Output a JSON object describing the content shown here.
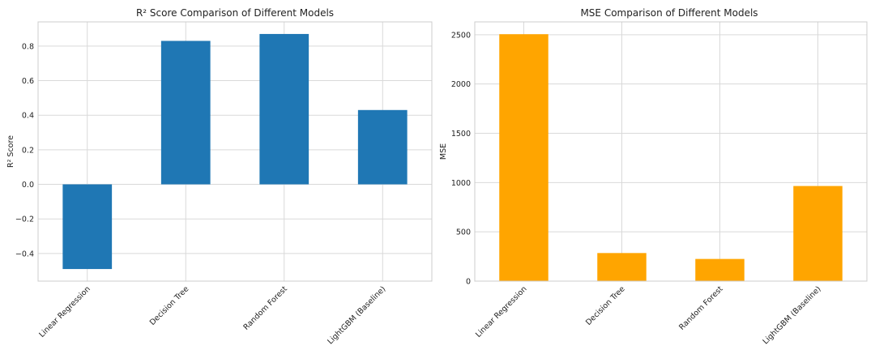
{
  "chart_data": [
    {
      "type": "bar",
      "title": "R² Score Comparison of Different Models",
      "xlabel": "",
      "ylabel": "R² Score",
      "categories": [
        "Linear Regression",
        "Decision Tree",
        "Random Forest",
        "LightGBM (Baseline)"
      ],
      "values": [
        -0.49,
        0.83,
        0.87,
        0.43
      ],
      "ylim": [
        -0.56,
        0.94
      ],
      "yticks": [
        -0.4,
        -0.2,
        0.0,
        0.2,
        0.4,
        0.6,
        0.8
      ],
      "ytick_labels": [
        "−0.4",
        "−0.2",
        "0.0",
        "0.2",
        "0.4",
        "0.6",
        "0.8"
      ],
      "color": "#1f77b4",
      "grid": true
    },
    {
      "type": "bar",
      "title": "MSE Comparison of Different Models",
      "xlabel": "",
      "ylabel": "MSE",
      "categories": [
        "Linear Regression",
        "Decision Tree",
        "Random Forest",
        "LightGBM (Baseline)"
      ],
      "values": [
        2505,
        285,
        225,
        965
      ],
      "ylim": [
        0,
        2630
      ],
      "yticks": [
        0,
        500,
        1000,
        1500,
        2000,
        2500
      ],
      "ytick_labels": [
        "0",
        "500",
        "1000",
        "1500",
        "2000",
        "2500"
      ],
      "color": "#ffa500",
      "grid": true
    }
  ]
}
